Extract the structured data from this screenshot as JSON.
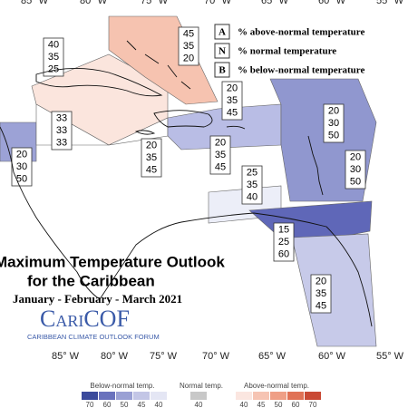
{
  "map": {
    "title": "Maximum Temperature Outlook",
    "subtitle": "for the Caribbean",
    "period": "January - February - March 2021",
    "logo": "CariCOF",
    "logo_caption": "CARIBBEAN CLIMATE OUTLOOK FORUM",
    "longitudes": [
      "85° W",
      "80° W",
      "75° W",
      "70° W",
      "65° W",
      "60° W",
      "55° W"
    ],
    "legend": [
      {
        "key": "A",
        "text": "% above-normal temperature"
      },
      {
        "key": "N",
        "text": "% normal temperature"
      },
      {
        "key": "B",
        "text": "% below-normal temperature"
      }
    ],
    "regions": [
      {
        "values": [
          40,
          35,
          25
        ],
        "color": "#fbe5dd"
      },
      {
        "values": [
          45,
          35,
          20
        ],
        "color": "#f6c3b0"
      },
      {
        "values": [
          20,
          30,
          50
        ],
        "color": "#9ca2d6"
      },
      {
        "values": [
          33,
          33,
          33
        ],
        "color": "#ffffff"
      },
      {
        "values": [
          20,
          35,
          45
        ],
        "color": "#b9bde5"
      },
      {
        "values": [
          20,
          35,
          45
        ],
        "color": "#b9bde5"
      },
      {
        "values": [
          20,
          35,
          45
        ],
        "color": "#b9bde5"
      },
      {
        "values": [
          20,
          30,
          50
        ],
        "color": "#9097cf"
      },
      {
        "values": [
          20,
          30,
          50
        ],
        "color": "#9097cf"
      },
      {
        "values": [
          25,
          35,
          40
        ],
        "color": "#eceef8"
      },
      {
        "values": [
          15,
          25,
          60
        ],
        "color": "#5f67b8"
      },
      {
        "values": [
          20,
          35,
          45
        ],
        "color": "#c7cae9"
      }
    ],
    "colorbar": {
      "below_label": "Below-normal temp.",
      "below": [
        {
          "value": 70,
          "color": "#3b4a9c"
        },
        {
          "value": 60,
          "color": "#6a72bd"
        },
        {
          "value": 50,
          "color": "#9aa0d4"
        },
        {
          "value": 45,
          "color": "#c3c6e6"
        },
        {
          "value": 40,
          "color": "#e4e6f4"
        }
      ],
      "normal_label": "Normal temp.",
      "normal": [
        {
          "value": 40,
          "color": "#c8c8c8"
        }
      ],
      "above_label": "Above-normal temp.",
      "above": [
        {
          "value": 40,
          "color": "#fbe6e0"
        },
        {
          "value": 45,
          "color": "#f6c4b3"
        },
        {
          "value": 50,
          "color": "#ef9f86"
        },
        {
          "value": 60,
          "color": "#e07256"
        },
        {
          "value": 70,
          "color": "#c94a35"
        }
      ]
    }
  }
}
